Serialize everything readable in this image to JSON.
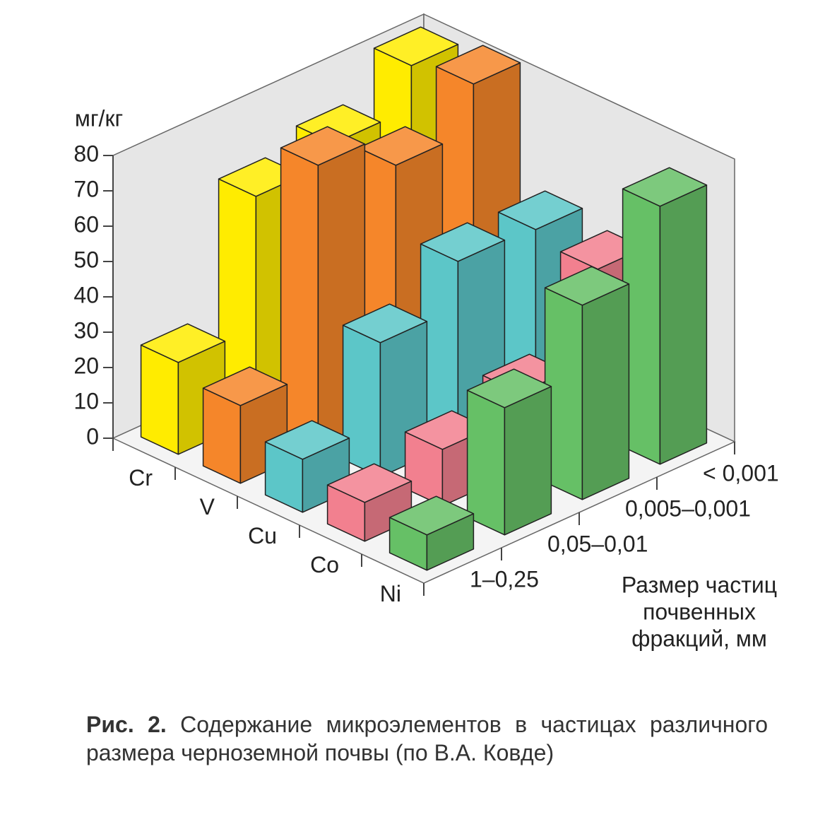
{
  "chart_data": {
    "type": "bar3d",
    "y_label": "мг/кг",
    "x_label": [
      "Размер частиц",
      "почвенных",
      "фракций, мм"
    ],
    "categories": [
      "1–0,25",
      "0,05–0,01",
      "0,005–0,001",
      "< 0,001"
    ],
    "series": [
      {
        "name": "Cr",
        "color": "#ffec00",
        "values": [
          26,
          63,
          68,
          80
        ]
      },
      {
        "name": "V",
        "color": "#f5862a",
        "values": [
          22,
          80,
          70,
          83
        ]
      },
      {
        "name": "Cu",
        "color": "#5cc6c8",
        "values": [
          15,
          38,
          51,
          50
        ]
      },
      {
        "name": "Co",
        "color": "#f2808f",
        "values": [
          11,
          16,
          22,
          47
        ]
      },
      {
        "name": "Ni",
        "color": "#66c066",
        "values": [
          10,
          36,
          55,
          73
        ]
      }
    ],
    "ylim": [
      0,
      80
    ],
    "yticks": [
      0,
      10,
      20,
      30,
      40,
      50,
      60,
      70,
      80
    ]
  },
  "caption": {
    "label": "Рис. 2.",
    "text": "Содержание микроэлементов в частицах различного размера черноземной почвы (по В.А. Ковде)"
  }
}
